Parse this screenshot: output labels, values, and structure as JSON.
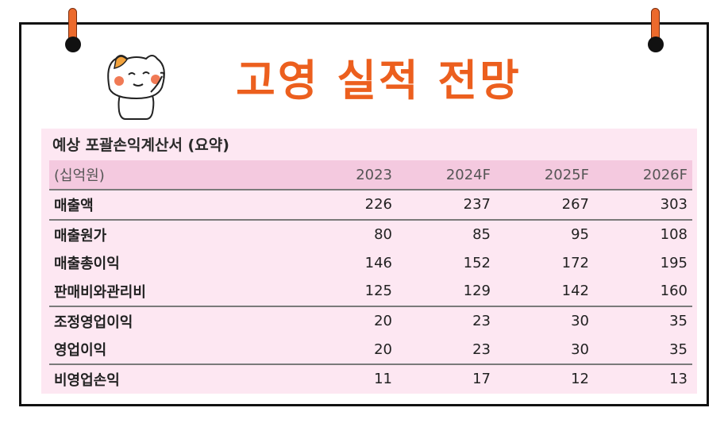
{
  "header": {
    "title": "고영 실적 전망"
  },
  "table": {
    "title": "예상 포괄손익계산서 (요약)",
    "unit_label": "(십억원)",
    "columns": [
      "2023",
      "2024F",
      "2025F",
      "2026F"
    ],
    "rows": [
      {
        "label": "매출액",
        "values": [
          "226",
          "237",
          "267",
          "303"
        ]
      },
      {
        "label": "매출원가",
        "values": [
          "80",
          "85",
          "95",
          "108"
        ]
      },
      {
        "label": "매출총이익",
        "values": [
          "146",
          "152",
          "172",
          "195"
        ]
      },
      {
        "label": "판매비와관리비",
        "values": [
          "125",
          "129",
          "142",
          "160"
        ]
      },
      {
        "label": "조정영업이익",
        "values": [
          "20",
          "23",
          "30",
          "35"
        ]
      },
      {
        "label": "영업이익",
        "values": [
          "20",
          "23",
          "30",
          "35"
        ]
      },
      {
        "label": "비영업손익",
        "values": [
          "11",
          "17",
          "12",
          "13"
        ]
      }
    ]
  },
  "colors": {
    "accent": "#ec5f1e",
    "panel_background": "#fde7f2",
    "header_row_background": "#f4c9df",
    "border": "#111111"
  },
  "icons": {
    "mascot": "cat-mascot-icon",
    "clips": "binder-clip-icon"
  }
}
